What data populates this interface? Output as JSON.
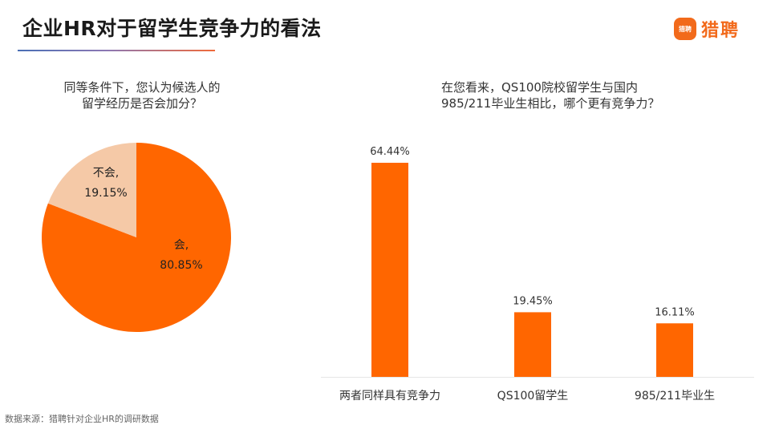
{
  "header": {
    "title": "企业HR对于留学生竞争力的看法",
    "logo_badge": "猎聘",
    "logo_text": "猎聘"
  },
  "left": {
    "question_lines": [
      "同等条件下，您认为候选人的",
      "留学经历是否会加分？"
    ]
  },
  "right": {
    "question_lines": [
      "在您看来，QS100院校留学生与国内",
      "985/211毕业生相比，哪个更有竞争力？"
    ]
  },
  "footer": {
    "source": "数据来源：猎聘针对企业HR的调研数据"
  },
  "colors": {
    "accent_orange": "#ff6600",
    "light_peach": "#f5c9a7",
    "brand_orange": "#f26a1b"
  },
  "chart_data": [
    {
      "type": "pie",
      "title": "同等条件下，您认为候选人的留学经历是否会加分？",
      "slices": [
        {
          "label": "会,",
          "value": 80.85,
          "value_label": "80.85%",
          "color": "#ff6600"
        },
        {
          "label": "不会,",
          "value": 19.15,
          "value_label": "19.15%",
          "color": "#f5c9a7"
        }
      ]
    },
    {
      "type": "bar",
      "title": "在您看来，QS100院校留学生与国内985/211毕业生相比，哪个更有竞争力？",
      "categories": [
        "两者同样具有竞争力",
        "QS100留学生",
        "985/211毕业生"
      ],
      "values": [
        64.44,
        19.45,
        16.11
      ],
      "value_labels": [
        "64.44%",
        "19.45%",
        "16.11%"
      ],
      "ylim": [
        0,
        64.44
      ],
      "grid": false,
      "color": "#ff6600"
    }
  ]
}
